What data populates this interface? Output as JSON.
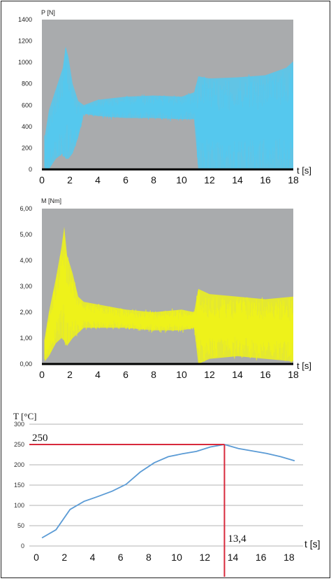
{
  "colors": {
    "plot_bg": "#a9abad",
    "force_fill": "#55c8ee",
    "torque_fill": "#eef21a",
    "temp_line": "#5b9bd5",
    "grid3": "#9a9a9a",
    "marker": "#d82a3c"
  },
  "chart_data": [
    {
      "type": "area",
      "ylabel": "P [N]",
      "xlabel": "t [s]",
      "ylim": [
        0,
        1400
      ],
      "xlim": [
        0,
        18
      ],
      "yticks": [
        "1400",
        "1200",
        "1000",
        "800",
        "600",
        "400",
        "200",
        "0"
      ],
      "xticks": [
        "0",
        "2",
        "4",
        "6",
        "8",
        "10",
        "12",
        "14",
        "16",
        "18"
      ],
      "grid": false,
      "series": [
        {
          "x": [
            0.2,
            0.5,
            1.0,
            1.5,
            1.7,
            1.9,
            2.2,
            2.6,
            3.0,
            4.0,
            6.0,
            8.0,
            10.0,
            10.9,
            11.2,
            12.0,
            14.0,
            16.0,
            17.5,
            18.0
          ],
          "upper": [
            300,
            550,
            750,
            950,
            1150,
            1050,
            800,
            640,
            600,
            650,
            680,
            690,
            680,
            720,
            870,
            850,
            860,
            880,
            950,
            1010
          ],
          "lower": [
            0,
            0,
            100,
            150,
            100,
            100,
            150,
            300,
            520,
            500,
            480,
            480,
            470,
            470,
            0,
            0,
            0,
            0,
            0,
            0
          ]
        }
      ]
    },
    {
      "type": "area",
      "ylabel": "M [Nm]",
      "xlabel": "t [s]",
      "ylim": [
        0,
        6
      ],
      "xlim": [
        0,
        18
      ],
      "yticks": [
        "6,00",
        "5,00",
        "4,00",
        "3,00",
        "2,00",
        "1,00",
        "0,00"
      ],
      "xticks": [
        "0",
        "2",
        "4",
        "6",
        "8",
        "10",
        "12",
        "14",
        "16",
        "18"
      ],
      "grid": false,
      "series": [
        {
          "x": [
            0.2,
            0.5,
            1.0,
            1.4,
            1.6,
            1.8,
            2.2,
            2.6,
            3.0,
            4.0,
            6.0,
            8.0,
            10.0,
            10.9,
            11.2,
            12.0,
            14.0,
            16.0,
            18.0
          ],
          "upper": [
            1.0,
            2.0,
            3.3,
            4.5,
            5.3,
            4.2,
            3.5,
            2.6,
            2.4,
            2.3,
            2.1,
            2.0,
            2.1,
            2.0,
            2.9,
            2.7,
            2.6,
            2.5,
            2.6
          ],
          "lower": [
            0.1,
            0.3,
            0.8,
            1.0,
            0.9,
            0.7,
            1.0,
            1.2,
            1.4,
            1.4,
            1.4,
            1.3,
            1.3,
            1.4,
            0.0,
            0.2,
            0.3,
            0.2,
            0.1
          ]
        }
      ]
    },
    {
      "type": "line",
      "ylabel": "T [°C]",
      "xlabel": "t [s]",
      "ylim": [
        0,
        300
      ],
      "xlim": [
        -0.5,
        19
      ],
      "yticks": [
        "300",
        "250",
        "200",
        "150",
        "100",
        "50",
        "0"
      ],
      "xticks": [
        "0",
        "2",
        "4",
        "6",
        "8",
        "10",
        "12",
        "14",
        "16",
        "18"
      ],
      "grid": true,
      "series": [
        {
          "x": [
            0.4,
            1.4,
            2.4,
            3.4,
            4.4,
            5.4,
            6.4,
            7.4,
            8.4,
            9.4,
            10.4,
            11.4,
            12.4,
            13.4,
            14.4,
            15.4,
            16.4,
            17.4,
            18.4
          ],
          "values": [
            20,
            40,
            90,
            110,
            122,
            135,
            152,
            182,
            205,
            220,
            227,
            233,
            244,
            250,
            240,
            234,
            228,
            220,
            210
          ]
        }
      ],
      "annotations": {
        "peak_label": "250",
        "time_label": "13,4",
        "peak_value": 250,
        "peak_time": 13.4
      }
    }
  ]
}
